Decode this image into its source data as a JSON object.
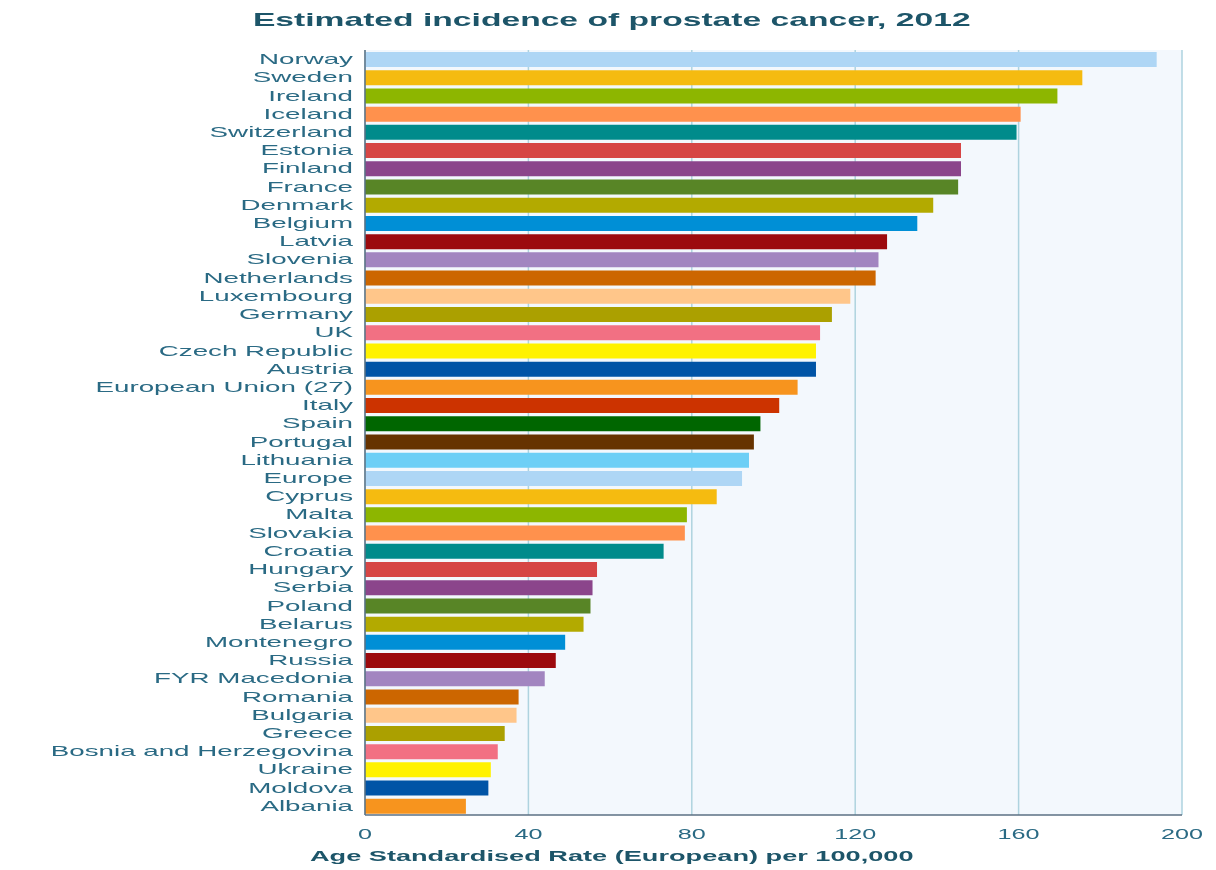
{
  "chart_data": {
    "type": "bar",
    "orientation": "horizontal",
    "title": "Estimated incidence of prostate cancer, 2012",
    "xlabel": "Age Standardised Rate (European) per 100,000",
    "categories": [
      "Norway",
      "Sweden",
      "Ireland",
      "Iceland",
      "Switzerland",
      "Estonia",
      "Finland",
      "France",
      "Denmark",
      "Belgium",
      "Latvia",
      "Slovenia",
      "Netherlands",
      "Luxembourg",
      "Germany",
      "UK",
      "Czech Republic",
      "Austria",
      "European Union (27)",
      "Italy",
      "Spain",
      "Portugal",
      "Lithuania",
      "Europe",
      "Cyprus",
      "Malta",
      "Slovakia",
      "Croatia",
      "Hungary",
      "Serbia",
      "Poland",
      "Belarus",
      "Montenegro",
      "Russia",
      "FYR Macedonia",
      "Romania",
      "Bulgaria",
      "Greece",
      "Bosnia and Herzegovina",
      "Ukraine",
      "Moldova",
      "Albania"
    ],
    "values": [
      193.8,
      175.6,
      169.5,
      160.5,
      159.5,
      145.9,
      145.9,
      145.2,
      139.1,
      135.2,
      127.8,
      125.7,
      125.0,
      118.8,
      114.3,
      111.4,
      110.4,
      110.4,
      105.9,
      101.4,
      96.8,
      95.2,
      94.0,
      92.3,
      86.1,
      78.8,
      78.3,
      73.1,
      56.8,
      55.7,
      55.2,
      53.5,
      49.0,
      46.7,
      44.0,
      37.6,
      37.1,
      34.2,
      32.5,
      30.8,
      30.2,
      24.7
    ],
    "colors": [
      "#aed6f5",
      "#f5bb10",
      "#8db600",
      "#ff914d",
      "#008b8b",
      "#d64545",
      "#8b458b",
      "#588526",
      "#b3aa00",
      "#008fd6",
      "#9c0a0e",
      "#a285c0",
      "#cc6600",
      "#ffc68a",
      "#aba000",
      "#f27083",
      "#fff200",
      "#0054a6",
      "#f7941e",
      "#cc3300",
      "#006600",
      "#663300",
      "#6dcff6",
      "#aed6f5",
      "#f5bb10",
      "#8db600",
      "#ff914d",
      "#008b8b",
      "#d64545",
      "#8b458b",
      "#588526",
      "#b3aa00",
      "#008fd6",
      "#9c0a0e",
      "#a285c0",
      "#cc6600",
      "#ffc68a",
      "#aba000",
      "#f27083",
      "#fff200",
      "#0054a6",
      "#f7941e"
    ],
    "xlim": [
      0,
      200
    ],
    "xticks": [
      0,
      40,
      80,
      120,
      160,
      200
    ],
    "grid": "x"
  }
}
